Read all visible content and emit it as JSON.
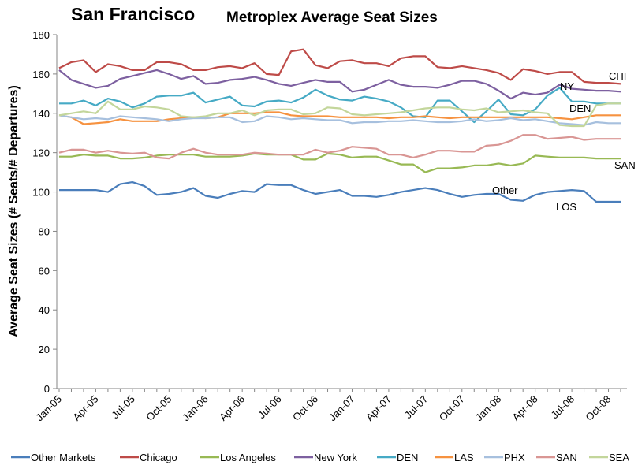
{
  "chart_data": {
    "type": "line",
    "title": "San Francisco",
    "subtitle": "Metroplex Average Seat Sizes",
    "y_label": "Average Seat Sizes (# Seats/# Departures)",
    "categories": [
      "Jan-05",
      null,
      null,
      "Apr-05",
      null,
      null,
      "Jul-05",
      null,
      null,
      "Oct-05",
      null,
      null,
      "Jan-06",
      null,
      null,
      "Apr-06",
      null,
      null,
      "Jul-06",
      null,
      null,
      "Oct-06",
      null,
      null,
      "Jan-07",
      null,
      null,
      "Apr-07",
      null,
      null,
      "Jul-07",
      null,
      null,
      "Oct-07",
      null,
      null,
      "Jan-08",
      null,
      null,
      "Apr-08",
      null,
      null,
      "Jul-08",
      null,
      null,
      "Oct-08",
      null
    ],
    "ylim": [
      0,
      180
    ],
    "yticks": [
      0,
      20,
      40,
      60,
      80,
      100,
      120,
      140,
      160,
      180
    ],
    "grid": false,
    "legend": "bottom",
    "annotations": [
      "CHI",
      "NY",
      "DEN",
      "SAN",
      "LOS",
      "Other"
    ],
    "series": [
      {
        "name": "Other Markets",
        "color": "#4a7ebb",
        "values": [
          101,
          101,
          101,
          101,
          100,
          104,
          105,
          103,
          98.5,
          99,
          100,
          102,
          98,
          97,
          99,
          100.5,
          100,
          104,
          103.5,
          103.5,
          101,
          99,
          100,
          101,
          98,
          98,
          97.5,
          98.5,
          100,
          101,
          102,
          101,
          99,
          97.5,
          98.5,
          99,
          99,
          96,
          95.5,
          98.5,
          100,
          100.5,
          101,
          100.5,
          95,
          95,
          95
        ]
      },
      {
        "name": "Chicago",
        "color": "#be4b48",
        "values": [
          163,
          166,
          167,
          161,
          165,
          164,
          162,
          162,
          166,
          166,
          165,
          162,
          162,
          163.5,
          164,
          163,
          165.5,
          160,
          159.5,
          171.5,
          172.5,
          164.5,
          163,
          166.5,
          167,
          165.5,
          165.5,
          164,
          168,
          169,
          169,
          163.5,
          163,
          164,
          163,
          162,
          160.5,
          157,
          162.5,
          161.5,
          160,
          161,
          161,
          156,
          155.5,
          155.5,
          155
        ]
      },
      {
        "name": "Los Angeles",
        "color": "#98b954",
        "values": [
          118,
          118,
          119,
          118.5,
          118.5,
          117,
          117,
          117.5,
          118.5,
          119,
          119,
          119,
          118,
          118,
          118,
          118.5,
          119.5,
          119,
          119,
          119,
          116.5,
          116.5,
          119.5,
          119,
          117.5,
          118,
          118,
          116,
          114,
          114,
          110,
          112,
          112,
          112.5,
          113.5,
          113.5,
          114.5,
          113.5,
          114.5,
          118.5,
          118,
          117.5,
          117.5,
          117.5,
          117,
          117,
          117
        ]
      },
      {
        "name": "New York",
        "color": "#7d60a0",
        "values": [
          162,
          157,
          155,
          153,
          154,
          157.5,
          159,
          160.5,
          162,
          160,
          157.5,
          159,
          155,
          155.5,
          157,
          157.5,
          158.5,
          157,
          155,
          154,
          155.5,
          157,
          156,
          156,
          151,
          152,
          154.5,
          157,
          154.5,
          153.5,
          153.5,
          153,
          154.5,
          156.5,
          156.5,
          155,
          151.5,
          147.5,
          150.5,
          149.5,
          150.5,
          154.5,
          152.5,
          152,
          151.5,
          151.5,
          151
        ]
      },
      {
        "name": "DEN",
        "color": "#46aac5",
        "values": [
          145,
          145,
          146.5,
          144,
          147.5,
          146,
          143,
          145,
          148.5,
          149,
          149,
          150.5,
          145.5,
          147,
          148.5,
          144,
          143.5,
          146,
          146.5,
          145.5,
          148,
          152,
          149,
          147,
          146.5,
          148.5,
          147.5,
          146,
          143,
          138.5,
          138,
          146.5,
          146.5,
          141,
          135.5,
          141,
          147,
          139.5,
          139,
          142,
          149,
          153,
          146,
          146,
          145,
          145,
          145
        ]
      },
      {
        "name": "LAS",
        "color": "#f69240",
        "values": [
          139,
          138,
          134.5,
          135,
          135.5,
          137,
          136,
          136,
          136,
          137,
          137.5,
          138,
          137.5,
          138,
          140,
          140,
          140,
          140.5,
          140.5,
          139,
          138.5,
          138.5,
          138.5,
          138,
          138,
          138,
          138,
          137.5,
          138,
          138,
          138.5,
          138,
          137.5,
          138,
          138,
          138,
          138,
          138,
          138,
          138,
          138,
          137.5,
          137,
          138,
          139,
          139,
          139
        ]
      },
      {
        "name": "PHX",
        "color": "#a7c0de",
        "values": [
          139,
          138,
          137,
          137.5,
          137,
          138.5,
          138,
          137.5,
          137,
          136,
          137,
          137.5,
          137.5,
          138,
          138,
          135.5,
          136,
          138.5,
          138,
          137,
          137.5,
          137,
          136.5,
          136.5,
          135,
          135.5,
          135.5,
          136,
          136,
          136.5,
          136,
          135.5,
          135.5,
          136,
          137,
          136,
          136.5,
          137.5,
          136.5,
          137,
          136,
          135,
          134.5,
          134,
          135.5,
          135,
          135
        ]
      },
      {
        "name": "SAN",
        "color": "#d99694",
        "values": [
          120,
          121.5,
          121.5,
          120,
          121,
          120,
          119.5,
          120,
          117.5,
          117,
          120,
          122,
          120,
          119,
          119,
          119,
          120,
          119.5,
          119,
          119,
          119,
          121.5,
          120,
          121,
          123,
          122.5,
          122,
          119,
          119,
          117.5,
          119,
          121,
          121,
          120.5,
          120.5,
          123.5,
          124,
          126,
          129,
          129,
          127,
          127.5,
          128,
          126.5,
          127,
          127,
          127
        ]
      },
      {
        "name": "SEA",
        "color": "#c3d69b",
        "values": [
          139,
          140,
          141,
          140,
          146,
          142,
          142,
          143.5,
          143,
          142,
          138.5,
          138,
          138.5,
          140,
          140,
          141.5,
          139,
          141.5,
          142,
          142,
          139.5,
          140,
          143,
          142.5,
          139.5,
          139,
          139.5,
          140,
          140.5,
          141.5,
          142.5,
          143,
          143,
          142,
          141.5,
          142.5,
          140.5,
          141,
          141.5,
          140.5,
          140,
          134,
          133.5,
          133.5,
          144,
          145,
          145
        ]
      }
    ]
  }
}
